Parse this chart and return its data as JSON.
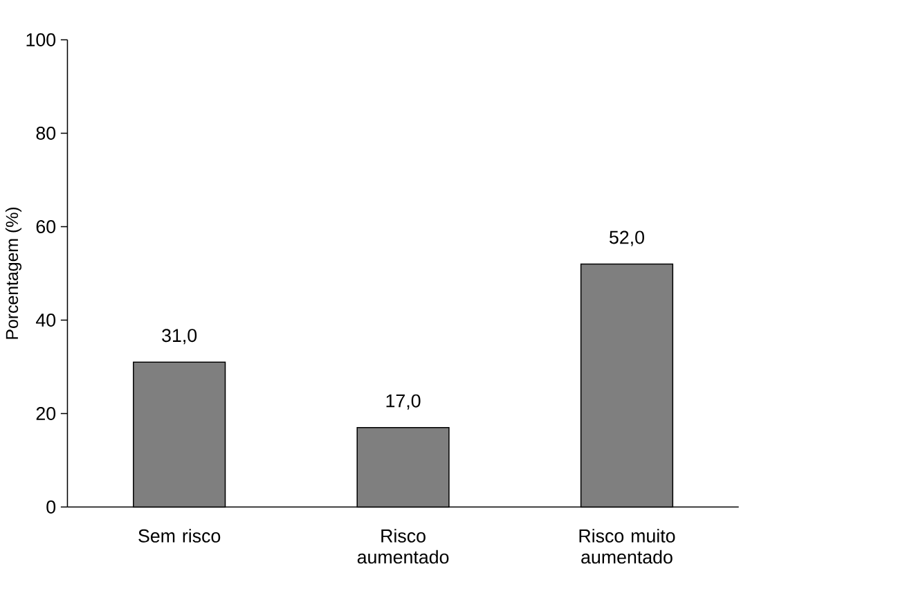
{
  "chart_data": {
    "type": "bar",
    "ylabel": "Porcentagem (%)",
    "categories": [
      "Sem risco",
      "Risco aumentado",
      "Risco muito aumentado"
    ],
    "values": [
      31.0,
      17.0,
      52.0
    ],
    "value_labels": [
      "31,0",
      "17,0",
      "52,0"
    ],
    "color": "#7f7f7f",
    "ylim": [
      0,
      100
    ],
    "yticks": [
      0,
      20,
      40,
      60,
      80,
      100
    ]
  }
}
